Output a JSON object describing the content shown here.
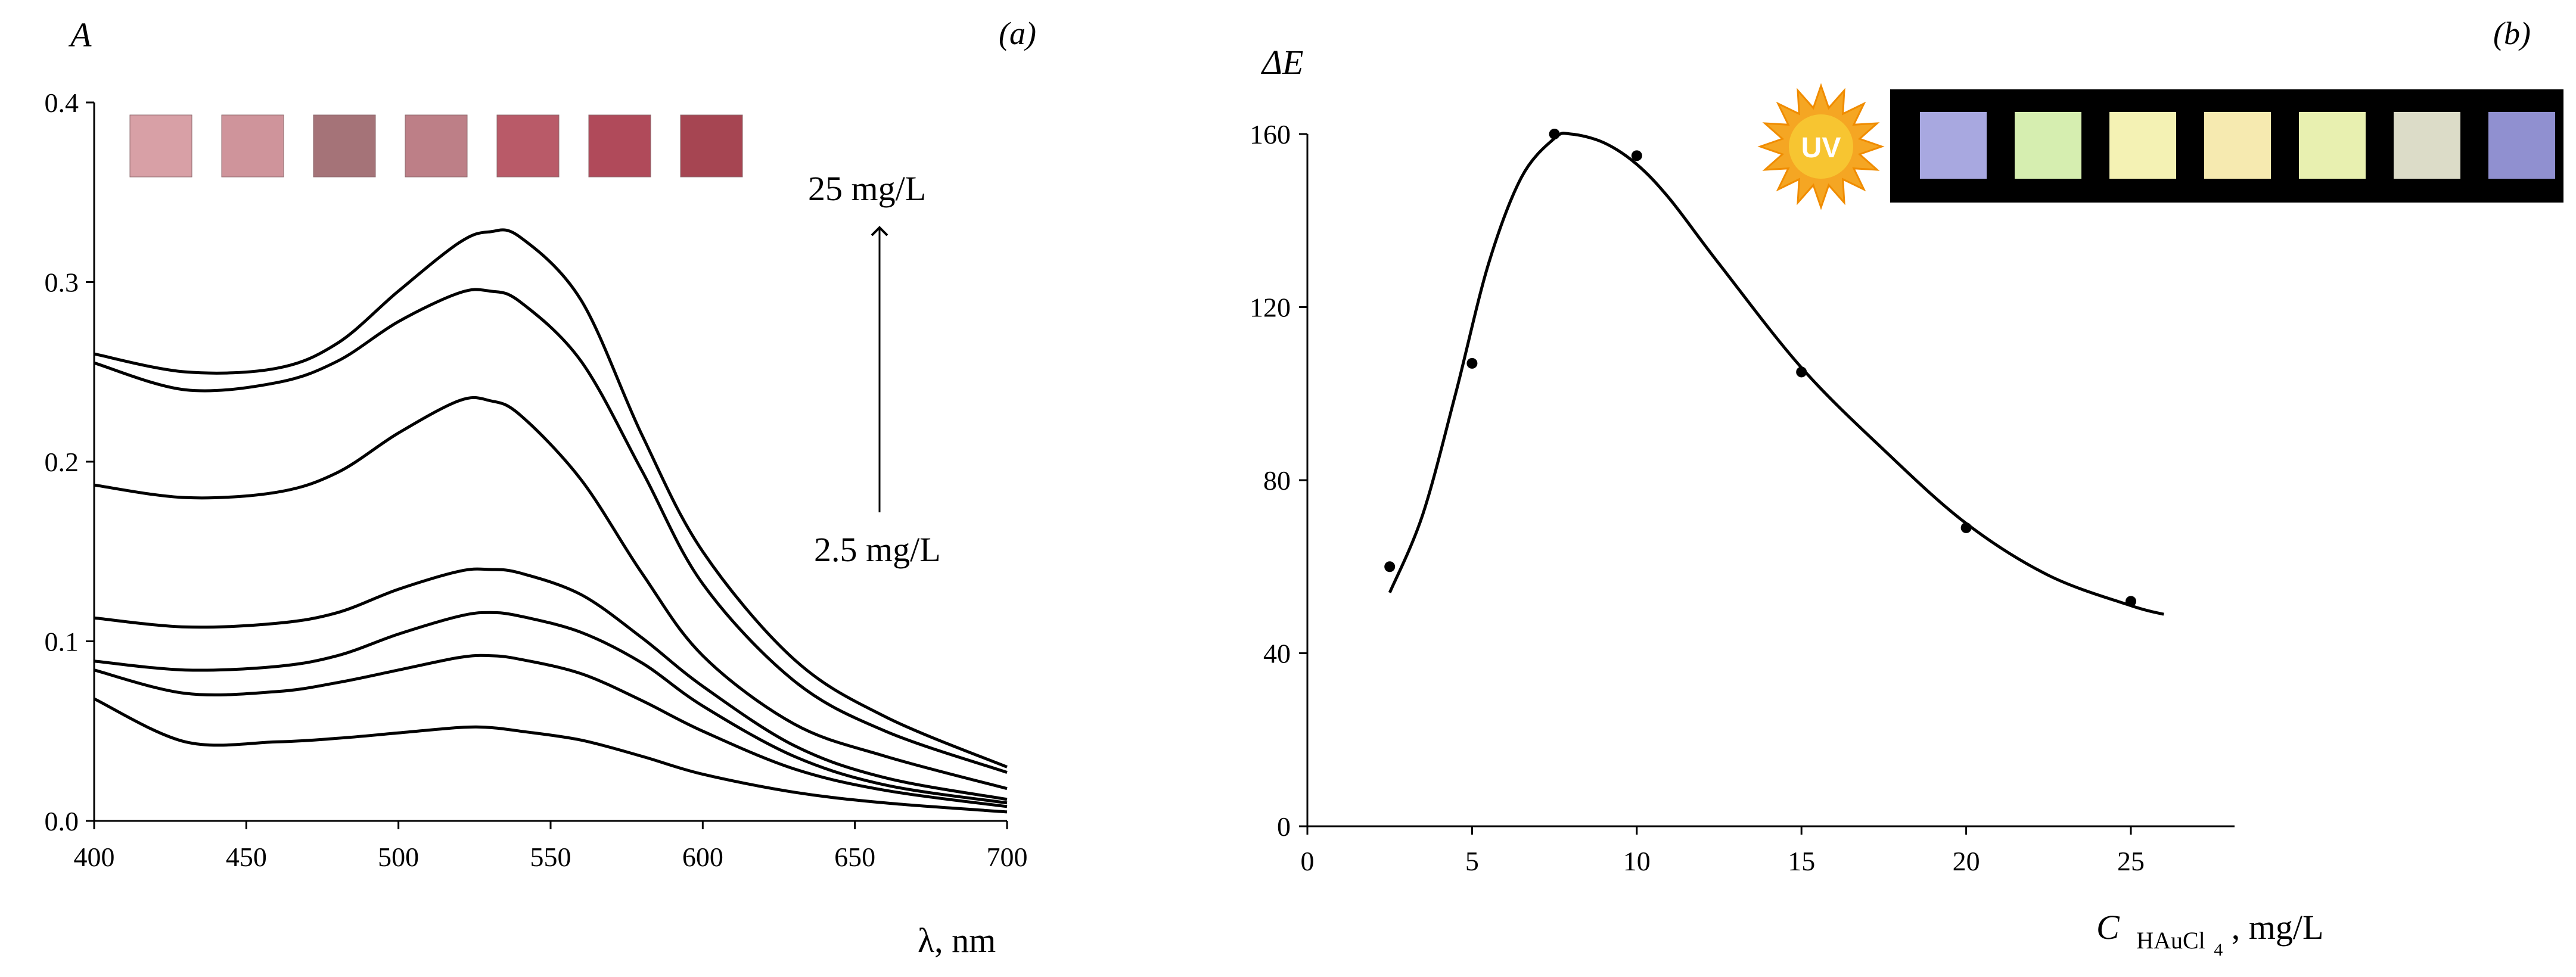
{
  "figure": {
    "panels": [
      {
        "label": "(a)",
        "type": "line",
        "ylabel": "A",
        "xlabel": "λ, nm",
        "xlim": [
          400,
          700
        ],
        "ylim": [
          0,
          0.4
        ],
        "xticks": [
          "400",
          "450",
          "500",
          "550",
          "600",
          "650",
          "700"
        ],
        "yticks": [
          "0.0",
          "0.1",
          "0.2",
          "0.3",
          "0.4"
        ],
        "annotation_top": "25 mg/L",
        "annotation_bottom": "2.5 mg/L",
        "swatch_colors": [
          "#d8a0a6",
          "#cf949b",
          "#a57378",
          "#bd7f87",
          "#b95a68",
          "#b04a5a",
          "#a64552"
        ]
      },
      {
        "label": "(b)",
        "type": "scatter",
        "ylabel": "ΔE",
        "xlabel_main": "C",
        "xlabel_sub": "HAuCl",
        "xlabel_sub4": "4",
        "xlabel_unit": ", mg/L",
        "xlim": [
          0,
          26
        ],
        "ylim": [
          0,
          160
        ],
        "xticks": [
          "0",
          "5",
          "10",
          "15",
          "20",
          "25"
        ],
        "yticks": [
          "0",
          "40",
          "80",
          "120",
          "160"
        ],
        "uv_label": "UV",
        "uv_swatch_colors": [
          "#a8a8e0",
          "#d6eeb0",
          "#f4f2b4",
          "#f6eab0",
          "#e8f0b0",
          "#dcdcc8",
          "#9090d0"
        ]
      }
    ]
  },
  "chart_data": [
    {
      "type": "line",
      "title": "",
      "xlabel": "λ, nm",
      "ylabel": "A",
      "xlim": [
        400,
        700
      ],
      "ylim": [
        0,
        0.4
      ],
      "grid": false,
      "x": [
        400,
        430,
        460,
        480,
        500,
        520,
        530,
        540,
        560,
        580,
        600,
        630,
        660,
        700
      ],
      "series": [
        {
          "values": [
            0.26,
            0.25,
            0.252,
            0.266,
            0.295,
            0.322,
            0.328,
            0.325,
            0.29,
            0.215,
            0.15,
            0.09,
            0.058,
            0.03
          ]
        },
        {
          "values": [
            0.255,
            0.24,
            0.244,
            0.256,
            0.278,
            0.294,
            0.295,
            0.289,
            0.256,
            0.195,
            0.132,
            0.078,
            0.05,
            0.027
          ]
        },
        {
          "values": [
            0.187,
            0.18,
            0.183,
            0.194,
            0.216,
            0.234,
            0.234,
            0.226,
            0.19,
            0.138,
            0.092,
            0.054,
            0.036,
            0.018
          ]
        },
        {
          "values": [
            0.113,
            0.108,
            0.11,
            0.116,
            0.129,
            0.139,
            0.14,
            0.138,
            0.126,
            0.102,
            0.075,
            0.042,
            0.024,
            0.012
          ]
        },
        {
          "values": [
            0.089,
            0.084,
            0.086,
            0.092,
            0.104,
            0.114,
            0.116,
            0.114,
            0.105,
            0.088,
            0.064,
            0.036,
            0.02,
            0.01
          ]
        },
        {
          "values": [
            0.084,
            0.071,
            0.072,
            0.077,
            0.084,
            0.091,
            0.092,
            0.09,
            0.082,
            0.067,
            0.05,
            0.029,
            0.017,
            0.008
          ]
        },
        {
          "values": [
            0.068,
            0.044,
            0.044,
            0.046,
            0.049,
            0.052,
            0.052,
            0.05,
            0.045,
            0.036,
            0.026,
            0.016,
            0.01,
            0.005
          ]
        }
      ]
    },
    {
      "type": "scatter",
      "title": "",
      "xlabel": "C HAuCl4, mg/L",
      "ylabel": "ΔE",
      "xlim": [
        0,
        26
      ],
      "ylim": [
        0,
        160
      ],
      "grid": false,
      "points": {
        "x": [
          2.5,
          5,
          7.5,
          10,
          15,
          20,
          25
        ],
        "y": [
          60,
          107,
          160,
          155,
          105,
          69,
          52
        ]
      },
      "fit_curve": {
        "x": [
          2.5,
          3.5,
          4.5,
          5.5,
          6.5,
          7.5,
          8.0,
          9.0,
          10.0,
          11.0,
          12.5,
          15.0,
          17.5,
          20.0,
          22.5,
          25.0,
          26.0
        ],
        "y": [
          54,
          72,
          100,
          130,
          150,
          159,
          160,
          158,
          153,
          145,
          130,
          106,
          87,
          70,
          58,
          51,
          49
        ]
      }
    }
  ]
}
